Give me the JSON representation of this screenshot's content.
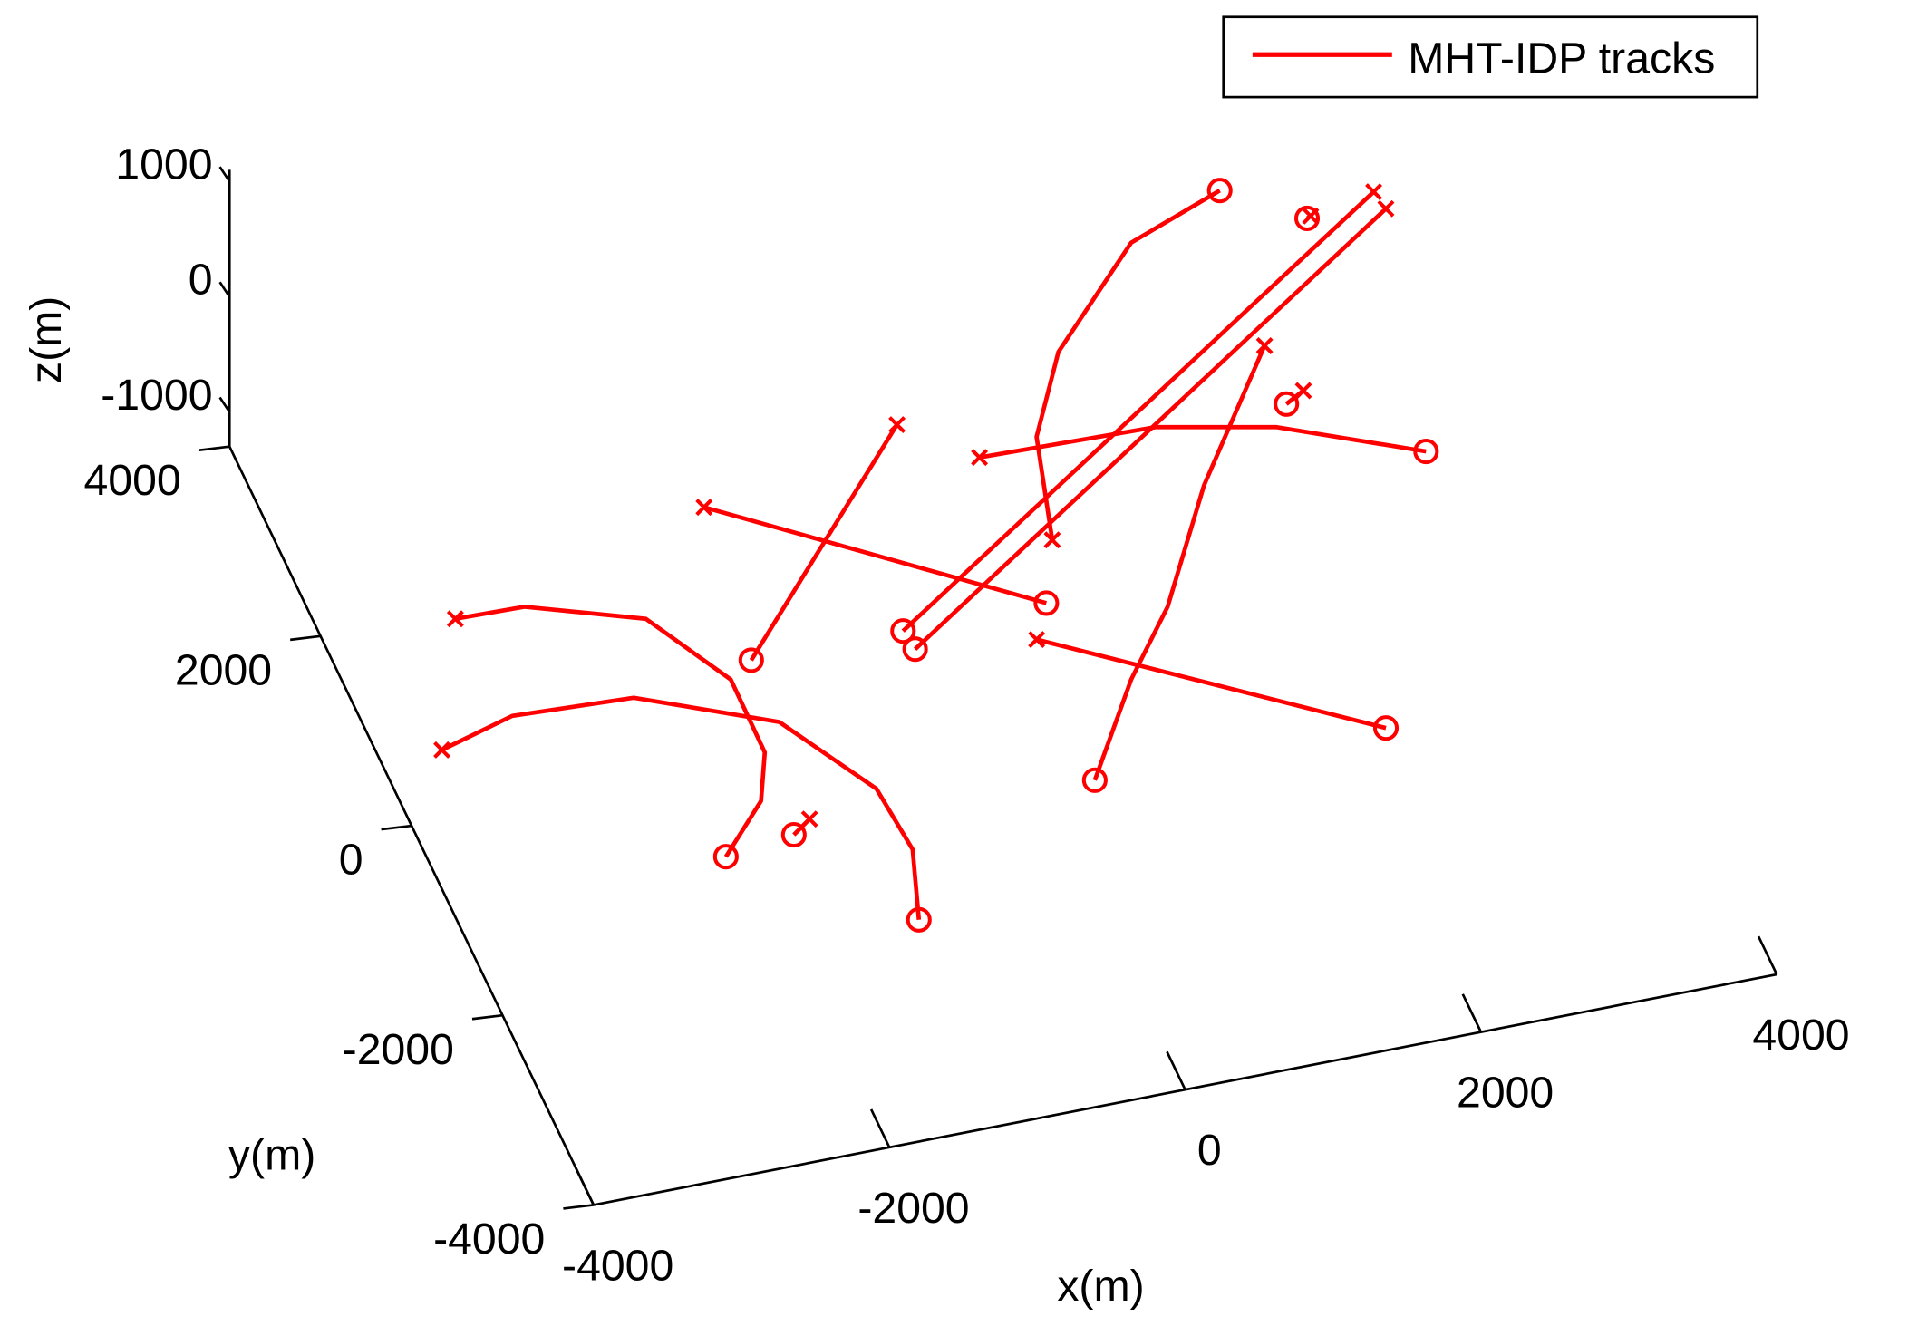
{
  "chart_data": {
    "type": "line3d",
    "legend": "MHT-IDP tracks",
    "color": "#ff0000",
    "xlabel": "x(m)",
    "ylabel": "y(m)",
    "zlabel": "z(m)",
    "xlim": [
      -4000,
      4000
    ],
    "ylim": [
      -4000,
      4000
    ],
    "zlim": [
      -1300,
      1100
    ],
    "xticks": [
      -4000,
      -2000,
      0,
      2000,
      4000
    ],
    "yticks": [
      -4000,
      -2000,
      0,
      2000,
      4000
    ],
    "zticks": [
      -1000,
      0,
      1000
    ],
    "start_marker": "x",
    "end_marker": "o",
    "tracks": [
      {
        "x": [
          -3560,
          -3097,
          -2382,
          -2037,
          -2043,
          -2210,
          -2593
        ],
        "y": [
          468,
          455,
          110,
          -635,
          -1402,
          -1863,
          -2335
        ],
        "z": [
          0,
          0,
          0,
          0,
          0,
          0,
          0
        ]
      },
      {
        "x": [
          -4032,
          -3496,
          -2691,
          -1863,
          -1461,
          -1417,
          -1587
        ],
        "y": [
          -771,
          -575,
          -628,
          -1136,
          -1962,
          -2616,
          -3306
        ],
        "z": [
          0,
          0,
          0,
          0,
          0,
          0,
          0
        ]
      },
      {
        "x": [
          -1691,
          141
        ],
        "y": [
          1077,
          -491
        ],
        "z": [
          0,
          0
        ]
      },
      {
        "x": [
          -253,
          -1853
        ],
        "y": [
          1511,
          -487
        ],
        "z": [
          0,
          0
        ]
      },
      {
        "x": [
          3386,
          -828
        ],
        "y": [
          2861,
          -491
        ],
        "z": [
          0,
          0
        ]
      },
      {
        "x": [
          3411,
          -807
        ],
        "y": [
          2675,
          -689
        ],
        "z": [
          0,
          0
        ]
      },
      {
        "x": [
          160,
          1338,
          2088,
          2939
        ],
        "y": [
          1040,
          1001,
          773,
          258
        ],
        "z": [
          0,
          0,
          0,
          0
        ]
      },
      {
        "x": [
          -27,
          1870
        ],
        "y": [
          -824,
          -2334
        ],
        "z": [
          0,
          0
        ]
      },
      {
        "x": [
          2254,
          1465,
          880,
          439,
          -85
        ],
        "y": [
          1581,
          348,
          -754,
          -1387,
          -2291
        ],
        "z": [
          0,
          0,
          0,
          0,
          0
        ]
      },
      {
        "x": [
          365,
          574,
          961,
          1735,
          2438
        ],
        "y": [
          107,
          1131,
          1909,
          2826,
          3163
        ],
        "z": [
          0,
          0,
          0,
          0,
          0
        ]
      },
      {
        "x": [
          2924,
          2895
        ],
        "y": [
          2746,
          2730
        ],
        "z": [
          0,
          0
        ]
      },
      {
        "x": [
          2361,
          2216
        ],
        "y": [
          1075,
          978
        ],
        "z": [
          0,
          0
        ]
      },
      {
        "x": [
          -1964,
          -2108
        ],
        "y": [
          -2129,
          -2252
        ],
        "z": [
          0,
          0
        ]
      }
    ]
  }
}
